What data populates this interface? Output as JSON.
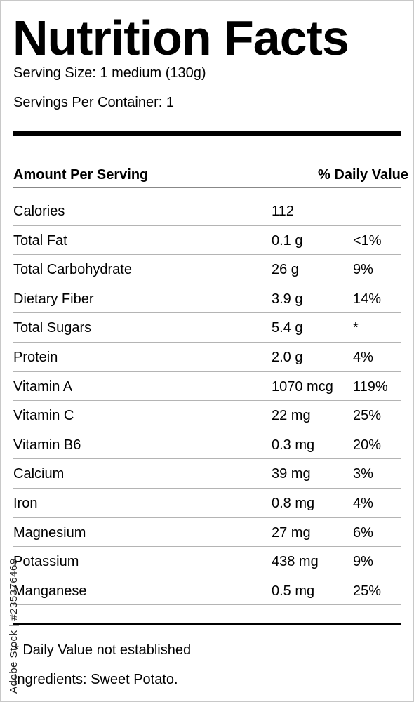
{
  "label": {
    "title": "Nutrition Facts",
    "serving_size": "Serving Size: 1 medium (130g)",
    "servings_per_container": "Servings Per Container: 1",
    "amount_header": "Amount Per Serving",
    "dv_header": "% Daily Value",
    "rows": [
      {
        "name": "Calories",
        "amount": "112",
        "dv": ""
      },
      {
        "name": "Total Fat",
        "amount": "0.1 g",
        "dv": "<1%"
      },
      {
        "name": "Total Carbohydrate",
        "amount": "26 g",
        "dv": "9%"
      },
      {
        "name": "Dietary Fiber",
        "amount": "3.9 g",
        "dv": "14%"
      },
      {
        "name": "Total Sugars",
        "amount": "5.4 g",
        "dv": "*"
      },
      {
        "name": "Protein",
        "amount": "2.0 g",
        "dv": "4%"
      },
      {
        "name": "Vitamin A",
        "amount": "1070 mcg",
        "dv": "119%"
      },
      {
        "name": "Vitamin C",
        "amount": "22 mg",
        "dv": "25%"
      },
      {
        "name": "Vitamin B6",
        "amount": "0.3 mg",
        "dv": "20%"
      },
      {
        "name": "Calcium",
        "amount": "39 mg",
        "dv": "3%"
      },
      {
        "name": "Iron",
        "amount": "0.8 mg",
        "dv": "4%"
      },
      {
        "name": "Magnesium",
        "amount": "27 mg",
        "dv": "6%"
      },
      {
        "name": "Potassium",
        "amount": "438 mg",
        "dv": "9%"
      },
      {
        "name": "Manganese",
        "amount": "0.5 mg",
        "dv": "25%"
      }
    ],
    "footnote": "* Daily Value not established",
    "ingredients": "Ingredients: Sweet Potato."
  },
  "watermark": "Adobe Stock | #235376469"
}
